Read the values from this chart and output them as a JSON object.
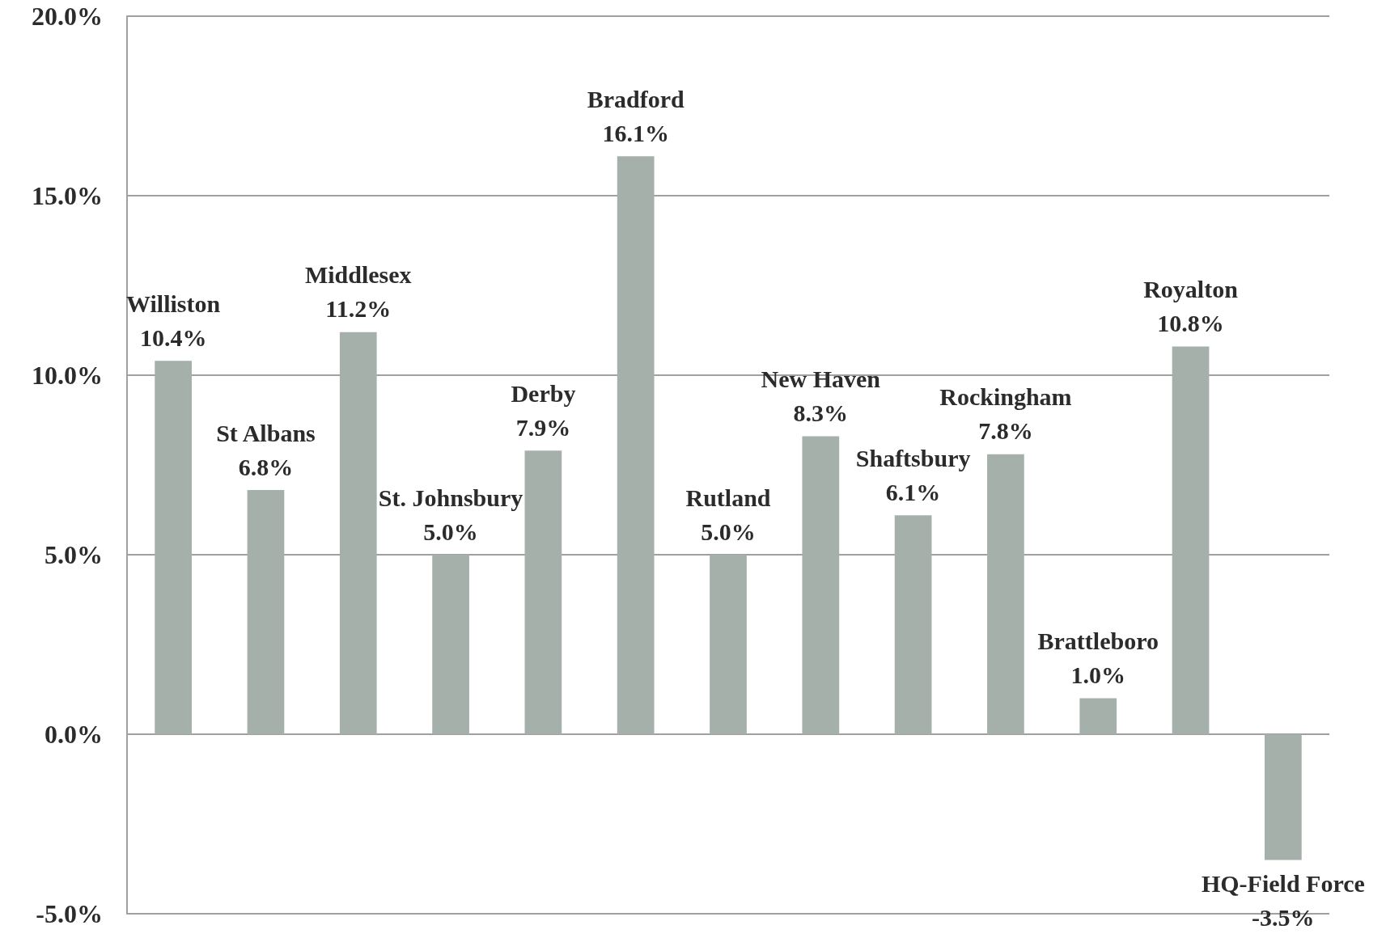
{
  "chart_data": {
    "type": "bar",
    "categories": [
      "Williston",
      "St Albans",
      "Middlesex",
      "St. Johnsbury",
      "Derby",
      "Bradford",
      "Rutland",
      "New Haven",
      "Shaftsbury",
      "Rockingham",
      "Brattleboro",
      "Royalton",
      "HQ-Field Force"
    ],
    "values": [
      10.4,
      6.8,
      11.2,
      5.0,
      7.9,
      16.1,
      5.0,
      8.3,
      6.1,
      7.8,
      1.0,
      10.8,
      -3.5
    ],
    "value_labels": [
      "10.4%",
      "6.8%",
      "11.2%",
      "5.0%",
      "7.9%",
      "16.1%",
      "5.0%",
      "8.3%",
      "6.1%",
      "7.8%",
      "1.0%",
      "10.8%",
      "-3.5%"
    ],
    "color": "#a5b0ab",
    "ylim": [
      -5,
      20
    ],
    "yticks": [
      {
        "value": -5,
        "label": "-5.0%"
      },
      {
        "value": 0,
        "label": "0.0%"
      },
      {
        "value": 5,
        "label": "5.0%"
      },
      {
        "value": 10,
        "label": "10.0%"
      },
      {
        "value": 15,
        "label": "15.0%"
      },
      {
        "value": 20,
        "label": "20.0%"
      }
    ],
    "grid": "y"
  }
}
